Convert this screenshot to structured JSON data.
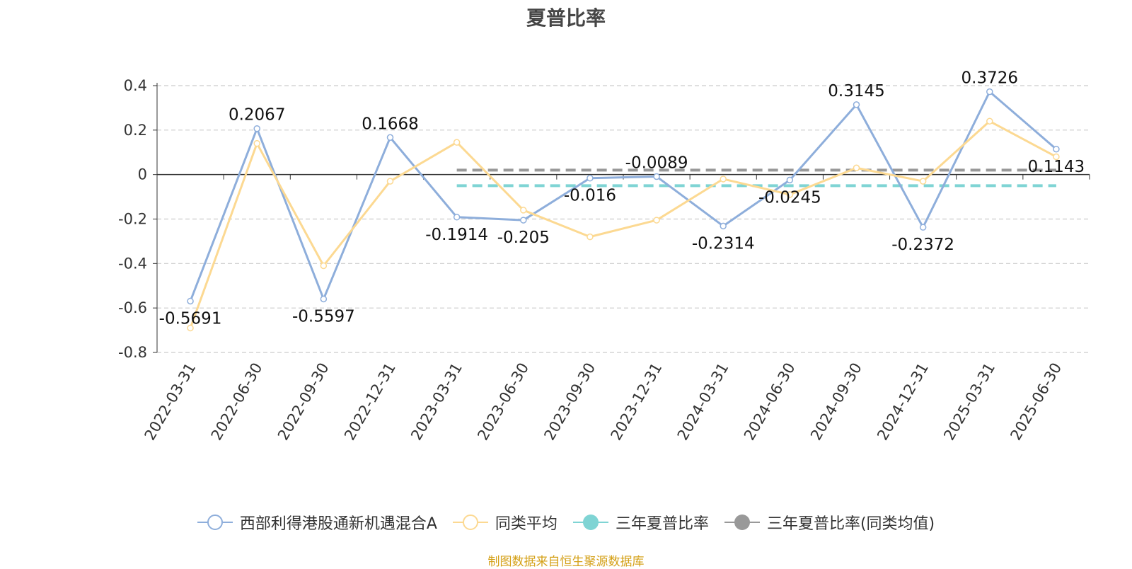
{
  "chart_data": {
    "type": "line",
    "title": "夏普比率",
    "xlabel": "",
    "ylabel": "",
    "ylim": [
      -0.8,
      0.4
    ],
    "yticks": [
      0.4,
      0.2,
      0,
      -0.2,
      -0.4,
      -0.6,
      -0.8
    ],
    "ytick_labels": [
      "0.4",
      "0.2",
      "0",
      "-0.2",
      "-0.4",
      "-0.6",
      "-0.8"
    ],
    "grid": true,
    "legend_position": "bottom",
    "categories": [
      "2022-03-31",
      "2022-06-30",
      "2022-09-30",
      "2022-12-31",
      "2023-03-31",
      "2023-06-30",
      "2023-09-30",
      "2023-12-31",
      "2024-03-31",
      "2024-06-30",
      "2024-09-30",
      "2024-12-31",
      "2025-03-31",
      "2025-06-30"
    ],
    "series": [
      {
        "name": "西部利得港股通新机遇混合A",
        "color": "#8eaedb",
        "values": [
          -0.5691,
          0.2067,
          -0.5597,
          0.1668,
          -0.1914,
          -0.205,
          -0.016,
          -0.0089,
          -0.2314,
          -0.0245,
          0.3145,
          -0.2372,
          0.3726,
          0.1143
        ],
        "labels": [
          "-0.5691",
          "0.2067",
          "-0.5597",
          "0.1668",
          "-0.1914",
          "-0.205",
          "-0.016",
          "-0.0089",
          "-0.2314",
          "-0.0245",
          "0.3145",
          "-0.2372",
          "0.3726",
          "0.1143"
        ]
      },
      {
        "name": "同类平均",
        "color": "#fcd992",
        "values": [
          -0.69,
          0.14,
          -0.41,
          -0.03,
          0.145,
          -0.16,
          -0.28,
          -0.205,
          -0.02,
          -0.09,
          0.03,
          -0.03,
          0.24,
          0.08
        ]
      }
    ],
    "reference_lines": [
      {
        "name": "三年夏普比率",
        "color": "#7fd4d4",
        "value": -0.05,
        "from": "2023-03-31",
        "to": "2025-06-30"
      },
      {
        "name": "三年夏普比率(同类均值)",
        "color": "#999999",
        "value": 0.02,
        "from": "2023-03-31",
        "to": "2025-06-30"
      }
    ]
  },
  "legend": [
    {
      "label": "西部利得港股通新机遇混合A",
      "color": "#8eaedb",
      "filled": false
    },
    {
      "label": "同类平均",
      "color": "#fcd992",
      "filled": false
    },
    {
      "label": "三年夏普比率",
      "color": "#7fd4d4",
      "filled": true
    },
    {
      "label": "三年夏普比率(同类均值)",
      "color": "#999999",
      "filled": true
    }
  ],
  "source_note": "制图数据来自恒生聚源数据库"
}
